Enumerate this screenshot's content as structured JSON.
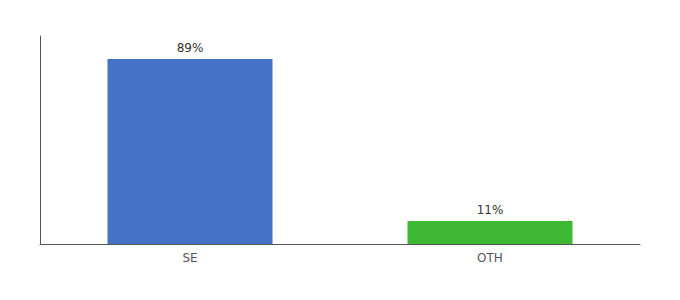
{
  "chart_data": {
    "type": "bar",
    "categories": [
      "SE",
      "OTH"
    ],
    "values": [
      89,
      11
    ],
    "value_labels": [
      "89%",
      "11%"
    ],
    "colors": [
      "#4472c4",
      "#3cb832"
    ],
    "ylim": [
      0,
      100
    ],
    "yticks": [],
    "grid": false,
    "data_labels": true,
    "tick_labels": "x"
  }
}
